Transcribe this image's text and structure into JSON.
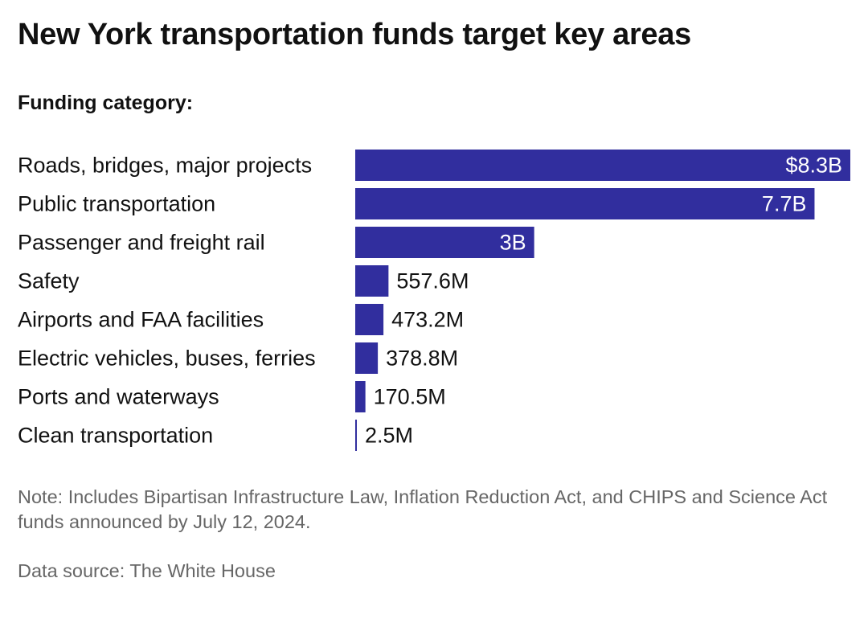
{
  "header": {
    "title": "New York transportation funds target key areas",
    "subtitle": "Funding category:"
  },
  "footer": {
    "note": "Note: Includes Bipartisan Infrastructure Law, Inflation Reduction Act, and CHIPS and Science Act funds announced by July 12, 2024.",
    "source": "Data source: The White House"
  },
  "colors": {
    "bar": "#312e9e",
    "text": "#111111",
    "label_inside": "#ffffff"
  },
  "chart_data": {
    "type": "bar",
    "orientation": "horizontal",
    "categories": [
      "Roads, bridges, major projects",
      "Public transportation",
      "Passenger and freight rail",
      "Safety",
      "Airports and FAA facilities",
      "Electric vehicles, buses, ferries",
      "Ports and waterways",
      "Clean transportation"
    ],
    "values": [
      8300000000,
      7700000000,
      3000000000,
      557600000,
      473200000,
      378800000,
      170500000,
      2500000
    ],
    "value_labels": [
      "$8.3B",
      "7.7B",
      "3B",
      "557.6M",
      "473.2M",
      "378.8M",
      "170.5M",
      "2.5M"
    ],
    "xlim": [
      0,
      8300000000
    ],
    "grid": false,
    "legend": "none"
  }
}
